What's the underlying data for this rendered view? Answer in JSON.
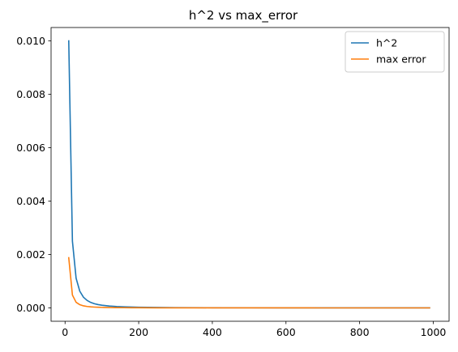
{
  "chart_data": {
    "type": "line",
    "title": "h^2 vs max_error",
    "xlabel": "",
    "ylabel": "",
    "xlim": [
      -38,
      1043
    ],
    "ylim": [
      -0.0005,
      0.0105
    ],
    "x_ticks": [
      {
        "value": 0,
        "label": "0"
      },
      {
        "value": 200,
        "label": "200"
      },
      {
        "value": 400,
        "label": "400"
      },
      {
        "value": 600,
        "label": "600"
      },
      {
        "value": 800,
        "label": "800"
      },
      {
        "value": 1000,
        "label": "1000"
      }
    ],
    "y_ticks": [
      {
        "value": 0.0,
        "label": "0.000"
      },
      {
        "value": 0.002,
        "label": "0.002"
      },
      {
        "value": 0.004,
        "label": "0.004"
      },
      {
        "value": 0.006,
        "label": "0.006"
      },
      {
        "value": 0.008,
        "label": "0.008"
      },
      {
        "value": 0.01,
        "label": "0.010"
      }
    ],
    "grid": false,
    "legend_position": "top-right",
    "x": [
      10,
      20,
      30,
      40,
      50,
      60,
      70,
      80,
      90,
      100,
      120,
      140,
      160,
      180,
      200,
      250,
      300,
      400,
      500,
      600,
      700,
      800,
      900,
      990
    ],
    "series": [
      {
        "name": "h^2",
        "color": "#1f77b4",
        "values": [
          0.01,
          0.0025,
          0.00111,
          0.000625,
          0.0004,
          0.000278,
          0.000204,
          0.000156,
          0.000123,
          0.0001,
          6.94e-05,
          5.1e-05,
          3.91e-05,
          3.09e-05,
          2.5e-05,
          1.6e-05,
          1.11e-05,
          6.25e-06,
          4e-06,
          2.78e-06,
          2.04e-06,
          1.56e-06,
          1.23e-06,
          1.02e-06
        ]
      },
      {
        "name": "max error",
        "color": "#ff7f0e",
        "values": [
          0.00188,
          0.00048,
          0.00021,
          0.00012,
          7.7e-05,
          5.3e-05,
          3.9e-05,
          3e-05,
          2.4e-05,
          1.9e-05,
          1.3e-05,
          9.8e-06,
          7.5e-06,
          5.9e-06,
          4.8e-06,
          3.1e-06,
          2.1e-06,
          1.2e-06,
          7.7e-07,
          5.3e-07,
          3.9e-07,
          3e-07,
          2.4e-07,
          2e-07
        ]
      }
    ]
  }
}
